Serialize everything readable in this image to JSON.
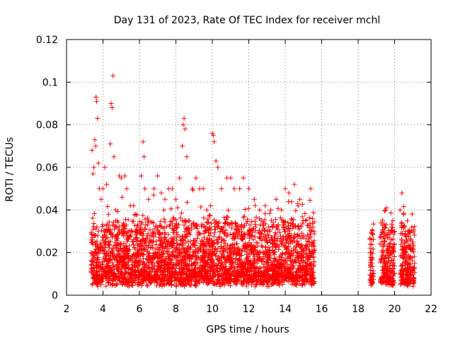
{
  "chart_data": {
    "type": "scatter",
    "title": "Day 131 of 2023, Rate Of TEC Index for receiver mchl",
    "xlabel": "GPS time / hours",
    "ylabel": "ROTI / TECUs",
    "xlim": [
      2,
      22
    ],
    "ylim": [
      0,
      0.12
    ],
    "xticks": [
      "2",
      "4",
      "6",
      "8",
      "10",
      "12",
      "14",
      "16",
      "18",
      "20",
      "22"
    ],
    "yticks": [
      "0",
      "0.02",
      "0.04",
      "0.06",
      "0.08",
      "0.1",
      "0.12"
    ],
    "grid": true,
    "legend": "none",
    "marker": "+",
    "color": "#ff0000",
    "series": [
      {
        "points": [
          [
            3.35,
            0.014
          ],
          [
            3.4,
            0.068
          ],
          [
            3.45,
            0.057
          ],
          [
            3.5,
            0.06
          ],
          [
            3.55,
            0.073
          ],
          [
            3.6,
            0.07
          ],
          [
            3.62,
            0.093
          ],
          [
            3.65,
            0.091
          ],
          [
            3.7,
            0.083
          ],
          [
            3.75,
            0.062
          ],
          [
            3.8,
            0.05
          ],
          [
            3.9,
            0.045
          ],
          [
            4.0,
            0.05
          ],
          [
            4.1,
            0.06
          ],
          [
            4.2,
            0.052
          ],
          [
            4.3,
            0.038
          ],
          [
            4.4,
            0.071
          ],
          [
            4.45,
            0.09
          ],
          [
            4.5,
            0.088
          ],
          [
            4.55,
            0.103
          ],
          [
            4.6,
            0.065
          ],
          [
            4.7,
            0.04
          ],
          [
            4.9,
            0.056
          ],
          [
            5.0,
            0.055
          ],
          [
            5.2,
            0.056
          ],
          [
            5.3,
            0.05
          ],
          [
            5.5,
            0.042
          ],
          [
            5.8,
            0.038
          ],
          [
            6.1,
            0.056
          ],
          [
            6.2,
            0.072
          ],
          [
            6.25,
            0.065
          ],
          [
            6.3,
            0.05
          ],
          [
            6.5,
            0.045
          ],
          [
            6.8,
            0.05
          ],
          [
            7.0,
            0.056
          ],
          [
            7.2,
            0.048
          ],
          [
            7.4,
            0.045
          ],
          [
            7.6,
            0.05
          ],
          [
            7.8,
            0.05
          ],
          [
            8.0,
            0.045
          ],
          [
            8.2,
            0.055
          ],
          [
            8.35,
            0.07
          ],
          [
            8.4,
            0.08
          ],
          [
            8.45,
            0.083
          ],
          [
            8.5,
            0.078
          ],
          [
            8.6,
            0.065
          ],
          [
            8.9,
            0.05
          ],
          [
            9.1,
            0.055
          ],
          [
            9.3,
            0.05
          ],
          [
            9.5,
            0.05
          ],
          [
            9.7,
            0.04
          ],
          [
            10.0,
            0.076
          ],
          [
            10.05,
            0.075
          ],
          [
            10.1,
            0.072
          ],
          [
            10.2,
            0.063
          ],
          [
            10.3,
            0.06
          ],
          [
            10.5,
            0.05
          ],
          [
            10.8,
            0.055
          ],
          [
            11.0,
            0.055
          ],
          [
            11.2,
            0.05
          ],
          [
            11.5,
            0.05
          ],
          [
            11.7,
            0.055
          ],
          [
            12.0,
            0.05
          ],
          [
            12.3,
            0.045
          ],
          [
            12.6,
            0.04
          ],
          [
            12.9,
            0.042
          ],
          [
            13.2,
            0.04
          ],
          [
            13.5,
            0.045
          ],
          [
            13.8,
            0.04
          ],
          [
            14.0,
            0.05
          ],
          [
            14.2,
            0.048
          ],
          [
            14.5,
            0.052
          ],
          [
            14.8,
            0.045
          ],
          [
            15.1,
            0.035
          ],
          [
            15.4,
            0.05
          ],
          [
            15.5,
            0.036
          ],
          [
            18.7,
            0.02
          ],
          [
            18.75,
            0.015
          ],
          [
            18.8,
            0.01
          ],
          [
            19.3,
            0.025
          ],
          [
            19.5,
            0.04
          ],
          [
            19.55,
            0.041
          ],
          [
            19.6,
            0.02
          ],
          [
            19.9,
            0.035
          ],
          [
            20.0,
            0.03
          ],
          [
            20.3,
            0.04
          ],
          [
            20.4,
            0.048
          ],
          [
            20.5,
            0.038
          ],
          [
            20.6,
            0.03
          ],
          [
            20.8,
            0.03
          ],
          [
            21.0,
            0.025
          ],
          [
            21.1,
            0.015
          ]
        ]
      }
    ]
  }
}
